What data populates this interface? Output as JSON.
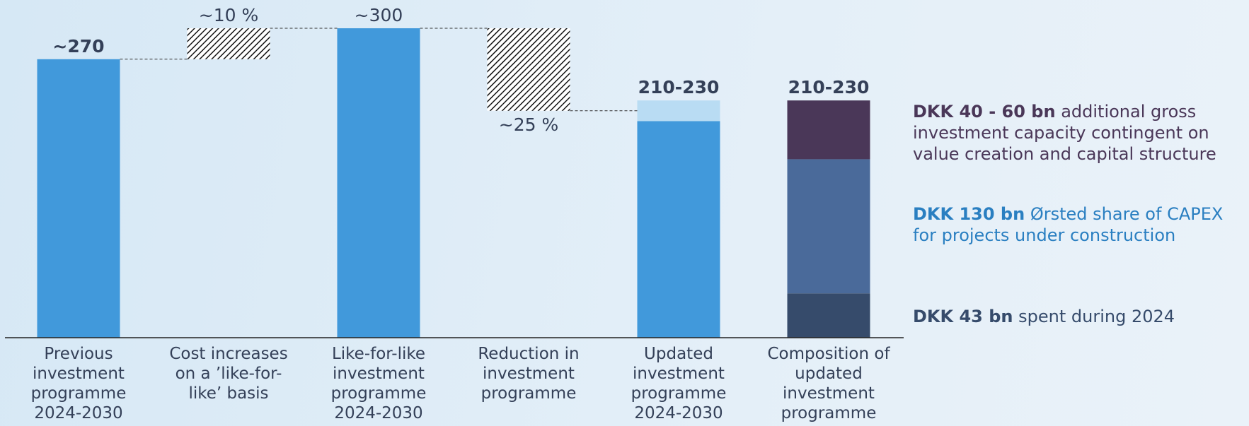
{
  "chart_data": {
    "type": "waterfall",
    "categories": [
      "Previous investment programme 2024-2030",
      "Cost increases on a ’like-for-like’ basis",
      "Like-for-like investment programme 2024-2030",
      "Reduction in investment programme",
      "Updated investment programme 2024-2030",
      "Composition of updated investment programme"
    ],
    "steps": [
      {
        "kind": "total",
        "value": 270,
        "value_label": "~270",
        "emphasis": true,
        "color": "#4199db"
      },
      {
        "kind": "change",
        "value": 30,
        "change_label": "~10 %"
      },
      {
        "kind": "total",
        "value": 300,
        "value_label": "~300",
        "emphasis": false,
        "color": "#4199db"
      },
      {
        "kind": "change",
        "value": -80,
        "change_label": "~25 %"
      },
      {
        "kind": "range",
        "low": 210,
        "high": 230,
        "value_label": "210-230",
        "emphasis": true,
        "color": "#4199db",
        "range_color": "#b9dcf3"
      },
      {
        "kind": "stack",
        "value_label": "210-230",
        "emphasis": true,
        "segments": [
          {
            "value": 43,
            "color": "#364b6b"
          },
          {
            "value": 130,
            "color": "#4a6a9a"
          },
          {
            "value": 57,
            "color": "#4a3758"
          }
        ]
      }
    ],
    "notes": [
      {
        "bold": "DKK 40 - 60 bn",
        "text": "additional gross investment capacity contingent on value creation and capital structure",
        "color": "#4a3758"
      },
      {
        "bold": "DKK 130 bn",
        "text": "Ørsted share of CAPEX for projects under construction",
        "color": "#2a7fc1"
      },
      {
        "bold": "DKK 43 bn",
        "text": "spent during 2024",
        "color": "#364b6b"
      }
    ]
  }
}
